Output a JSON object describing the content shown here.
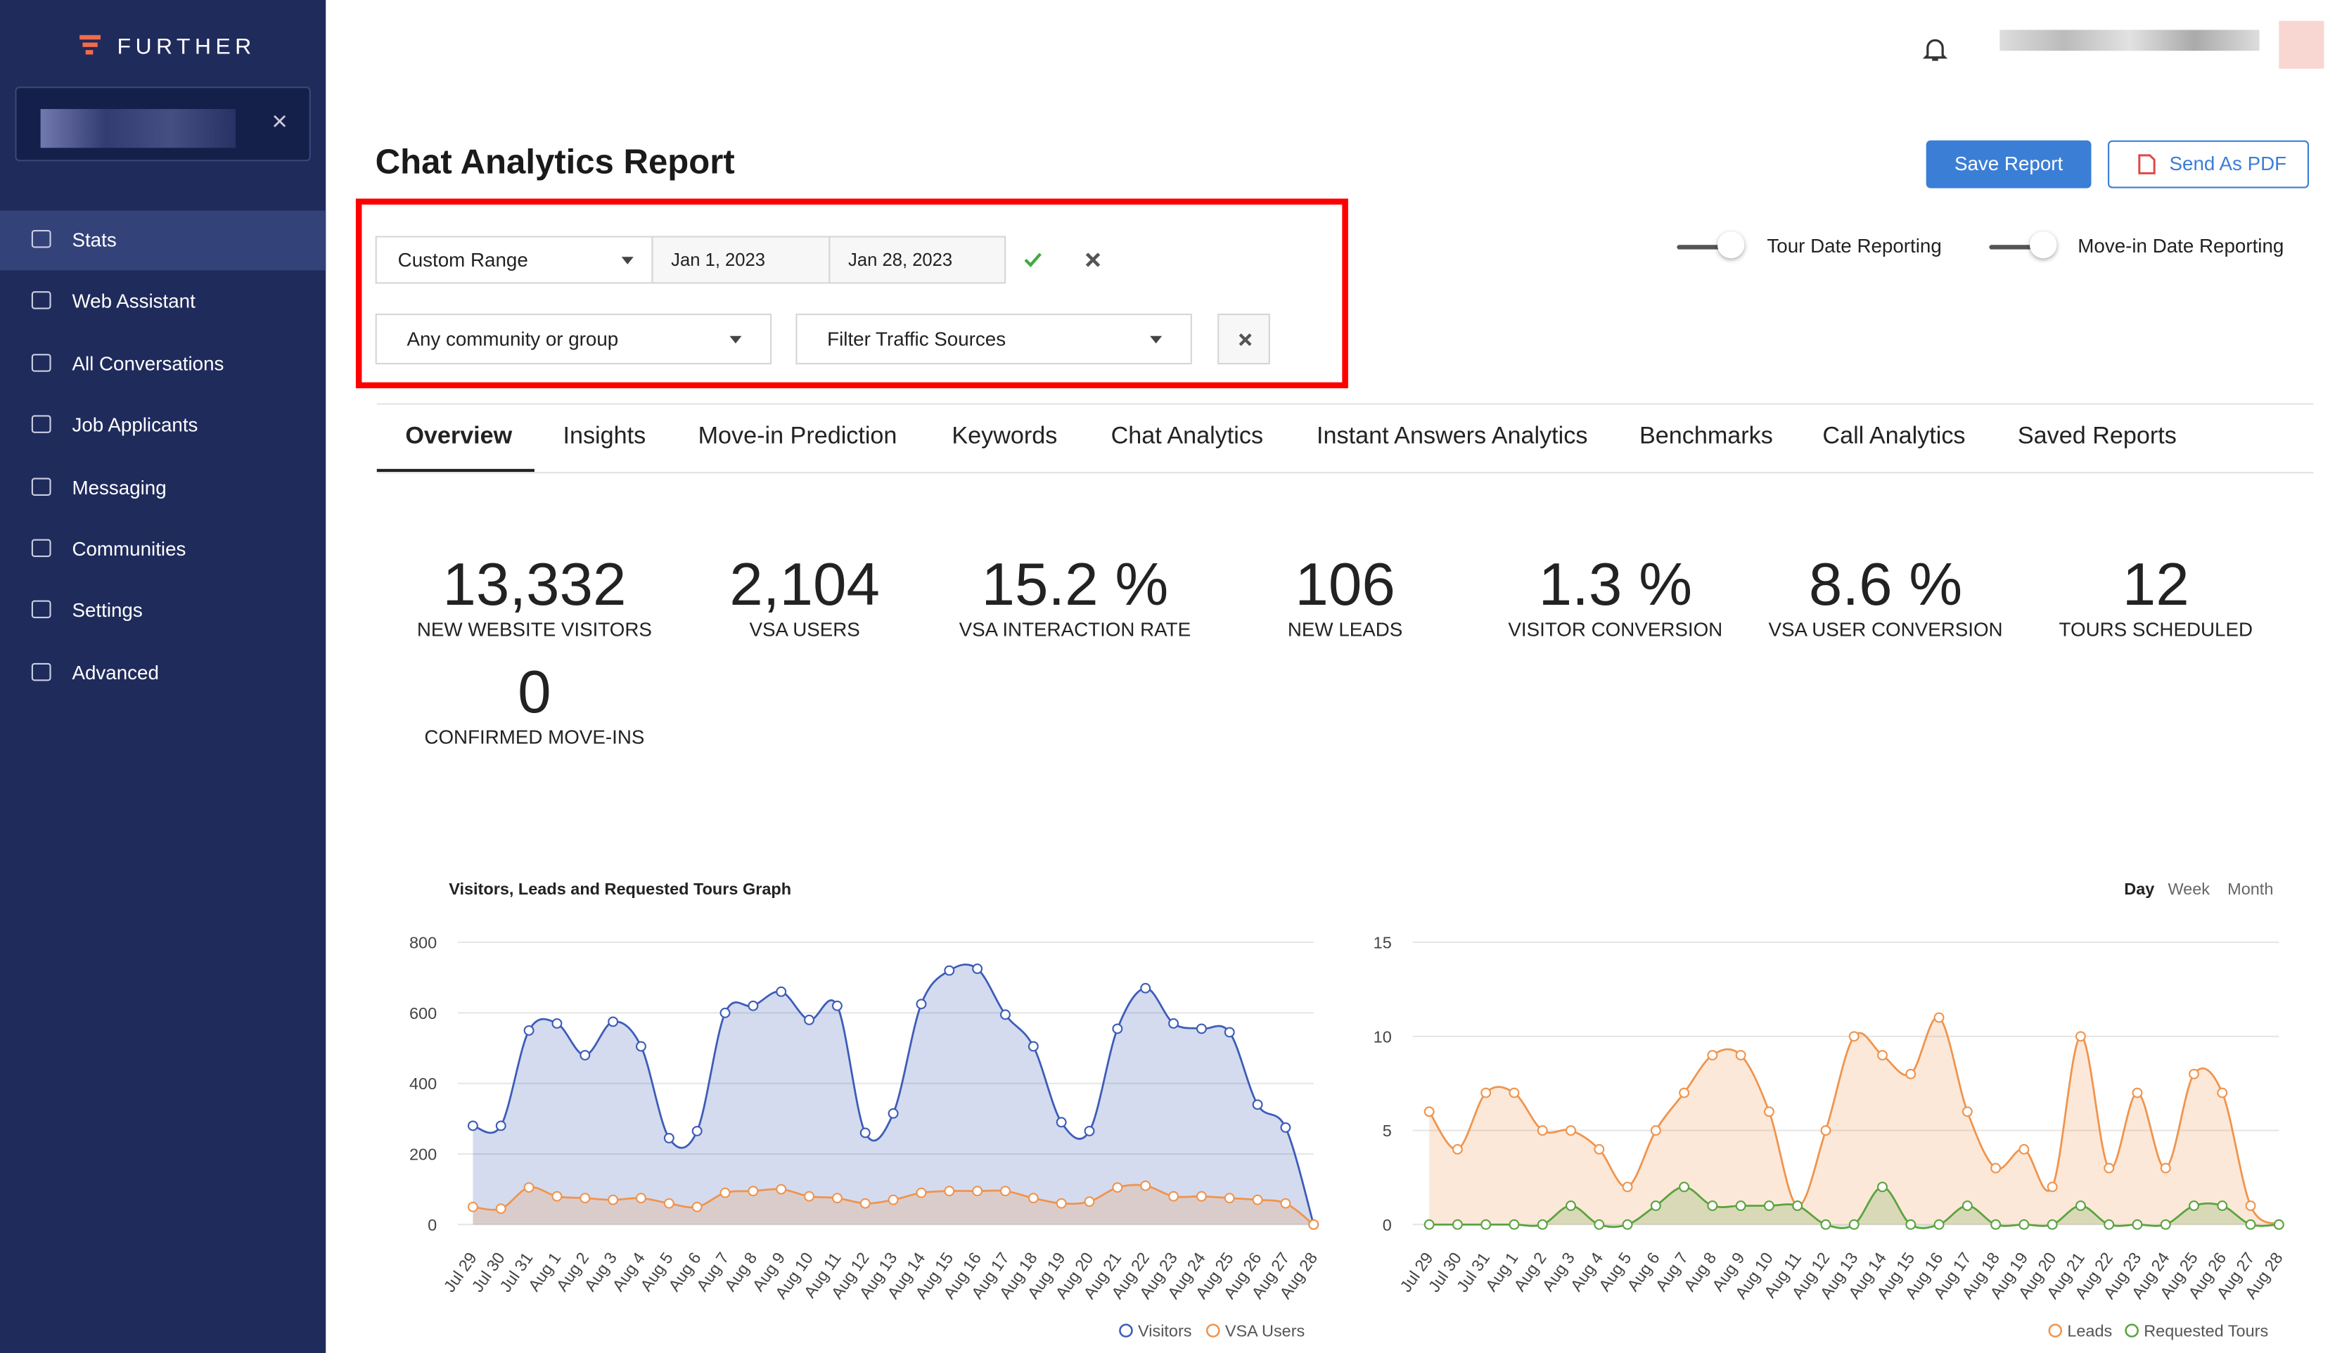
{
  "brand": "FURTHER",
  "sidebar": {
    "items": [
      "Stats",
      "Web Assistant",
      "All Conversations",
      "Job Applicants",
      "Messaging",
      "Communities",
      "Settings",
      "Advanced"
    ],
    "active": "Stats"
  },
  "header": {
    "title": "Chat Analytics Report",
    "save": "Save Report",
    "pdf": "Send As PDF"
  },
  "filters": {
    "range": "Custom Range",
    "start": "Jan 1, 2023",
    "end": "Jan 28, 2023",
    "community": "Any community or group",
    "traffic": "Filter Traffic Sources"
  },
  "toggles": [
    "Tour Date Reporting",
    "Move-in Date Reporting"
  ],
  "tabs": [
    "Overview",
    "Insights",
    "Move-in Prediction",
    "Keywords",
    "Chat Analytics",
    "Instant Answers Analytics",
    "Benchmarks",
    "Call Analytics",
    "Saved Reports"
  ],
  "active_tab": "Overview",
  "stats": [
    {
      "value": "13,332",
      "label": "NEW WEBSITE VISITORS"
    },
    {
      "value": "2,104",
      "label": "VSA USERS"
    },
    {
      "value": "15.2 %",
      "label": "VSA INTERACTION RATE"
    },
    {
      "value": "106",
      "label": "NEW LEADS"
    },
    {
      "value": "1.3 %",
      "label": "VISITOR CONVERSION"
    },
    {
      "value": "8.6 %",
      "label": "VSA USER CONVERSION"
    },
    {
      "value": "12",
      "label": "TOURS SCHEDULED"
    },
    {
      "value": "0",
      "label": "CONFIRMED MOVE-INS"
    }
  ],
  "periods": [
    "Day",
    "Week",
    "Month"
  ],
  "active_period": "Day",
  "chart_data": [
    {
      "type": "line",
      "title": "Visitors, Leads and Requested Tours Graph",
      "area": true,
      "grid": true,
      "categories": [
        "Jul 29",
        "Jul 30",
        "Jul 31",
        "Aug 1",
        "Aug 2",
        "Aug 3",
        "Aug 4",
        "Aug 5",
        "Aug 6",
        "Aug 7",
        "Aug 8",
        "Aug 9",
        "Aug 10",
        "Aug 11",
        "Aug 12",
        "Aug 13",
        "Aug 14",
        "Aug 15",
        "Aug 16",
        "Aug 17",
        "Aug 18",
        "Aug 19",
        "Aug 20",
        "Aug 21",
        "Aug 22",
        "Aug 23",
        "Aug 24",
        "Aug 25",
        "Aug 26",
        "Aug 27",
        "Aug 28"
      ],
      "ylim": [
        0,
        800
      ],
      "yticks": [
        0,
        200,
        400,
        600,
        800
      ],
      "series": [
        {
          "name": "Visitors",
          "color": "#3d5cb8",
          "values": [
            280,
            280,
            550,
            570,
            480,
            575,
            505,
            245,
            265,
            600,
            620,
            660,
            580,
            620,
            260,
            315,
            625,
            720,
            725,
            595,
            505,
            290,
            265,
            555,
            670,
            570,
            555,
            545,
            340,
            275,
            0
          ]
        },
        {
          "name": "VSA Users",
          "color": "#f0944d",
          "values": [
            50,
            45,
            105,
            80,
            75,
            70,
            75,
            60,
            50,
            90,
            95,
            100,
            80,
            75,
            60,
            70,
            90,
            95,
            95,
            95,
            75,
            60,
            65,
            105,
            110,
            80,
            80,
            75,
            70,
            60,
            0
          ]
        }
      ]
    },
    {
      "type": "line",
      "area": true,
      "grid": true,
      "categories": [
        "Jul 29",
        "Jul 30",
        "Jul 31",
        "Aug 1",
        "Aug 2",
        "Aug 3",
        "Aug 4",
        "Aug 5",
        "Aug 6",
        "Aug 7",
        "Aug 8",
        "Aug 9",
        "Aug 10",
        "Aug 11",
        "Aug 12",
        "Aug 13",
        "Aug 14",
        "Aug 15",
        "Aug 16",
        "Aug 17",
        "Aug 18",
        "Aug 19",
        "Aug 20",
        "Aug 21",
        "Aug 22",
        "Aug 23",
        "Aug 24",
        "Aug 25",
        "Aug 26",
        "Aug 27",
        "Aug 28"
      ],
      "ylim": [
        0,
        15
      ],
      "yticks": [
        0,
        5,
        10,
        15
      ],
      "series": [
        {
          "name": "Leads",
          "color": "#f0944d",
          "values": [
            6,
            4,
            7,
            7,
            5,
            5,
            4,
            2,
            5,
            7,
            9,
            9,
            6,
            1,
            5,
            10,
            9,
            8,
            11,
            6,
            3,
            4,
            2,
            10,
            3,
            7,
            3,
            8,
            7,
            1,
            0
          ]
        },
        {
          "name": "Requested Tours",
          "color": "#5aa33f",
          "values": [
            0,
            0,
            0,
            0,
            0,
            1,
            0,
            0,
            1,
            2,
            1,
            1,
            1,
            1,
            0,
            0,
            2,
            0,
            0,
            1,
            0,
            0,
            0,
            1,
            0,
            0,
            0,
            1,
            1,
            0,
            0
          ]
        }
      ]
    }
  ]
}
